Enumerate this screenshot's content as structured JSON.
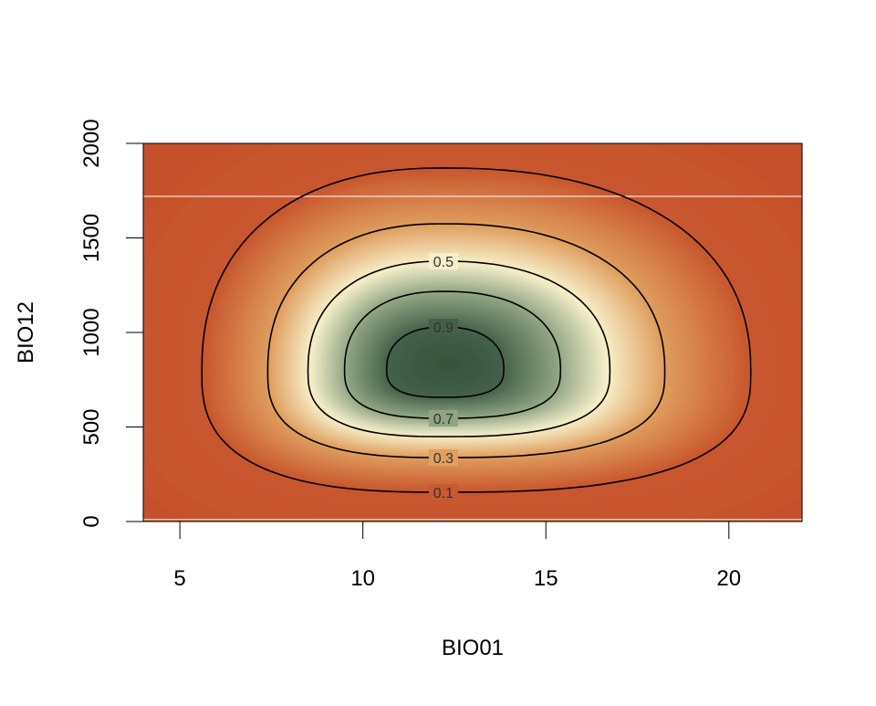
{
  "chart_data": {
    "type": "heatmap",
    "title": "",
    "xlabel": "BIO01",
    "ylabel": "BIO12",
    "xlim": [
      4,
      22
    ],
    "ylim": [
      0,
      2000
    ],
    "x_ticks": [
      5,
      10,
      15,
      20
    ],
    "x_tick_labels": [
      "5",
      "10",
      "15",
      "20"
    ],
    "y_ticks": [
      0,
      500,
      1000,
      1500,
      2000
    ],
    "y_tick_labels": [
      "0",
      "500",
      "1000",
      "1500",
      "2000"
    ],
    "value_range": [
      0,
      1
    ],
    "color_scale": [
      {
        "value": 0.0,
        "color": "#c6502b"
      },
      {
        "value": 0.1,
        "color": "#c9592f"
      },
      {
        "value": 0.3,
        "color": "#e0a061"
      },
      {
        "value": 0.5,
        "color": "#f7f0cb"
      },
      {
        "value": 0.7,
        "color": "#8fa483"
      },
      {
        "value": 0.9,
        "color": "#435f48"
      },
      {
        "value": 1.0,
        "color": "#37503c"
      }
    ],
    "contours": [
      {
        "level": 0.1,
        "label": "0.1",
        "left": 5.6,
        "right": 20.6,
        "top": 1870,
        "bottom": 155,
        "center_x": 12.2,
        "widest_y": 790,
        "label_side": "bottom"
      },
      {
        "level": 0.3,
        "label": "0.3",
        "left": 7.4,
        "right": 18.25,
        "top": 1575,
        "bottom": 338,
        "center_x": 12.2,
        "widest_y": 790,
        "label_side": "bottom"
      },
      {
        "level": 0.5,
        "label": "0.5",
        "left": 8.5,
        "right": 16.75,
        "top": 1377,
        "bottom": 449,
        "center_x": 12.2,
        "widest_y": 795,
        "label_side": "top"
      },
      {
        "level": 0.7,
        "label": "0.7",
        "left": 9.5,
        "right": 15.4,
        "top": 1217,
        "bottom": 546,
        "center_x": 12.2,
        "widest_y": 800,
        "label_side": "bottom"
      },
      {
        "level": 0.9,
        "label": "0.9",
        "left": 10.65,
        "right": 13.85,
        "top": 1029,
        "bottom": 657,
        "center_x": 12.2,
        "widest_y": 805,
        "label_side": "top"
      }
    ],
    "peak": {
      "x": 12.4,
      "y": 830,
      "value": 1.0
    },
    "reference_lines_y": [
      1720,
      10
    ],
    "grid": false,
    "legend": "none"
  }
}
